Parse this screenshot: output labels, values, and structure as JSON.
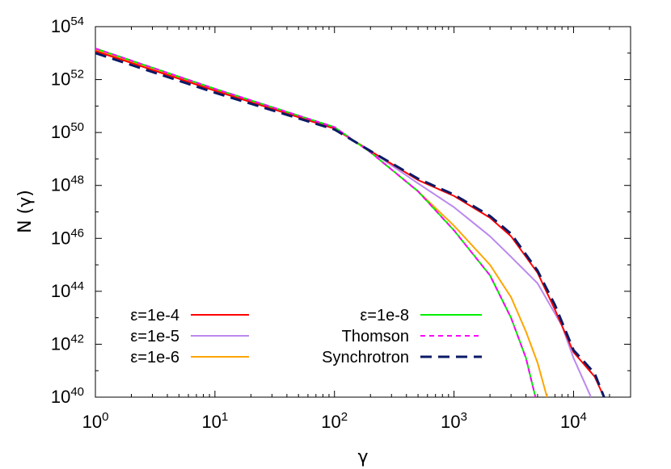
{
  "chart_data": {
    "type": "line",
    "title": "",
    "xlabel": "γ",
    "ylabel": "N (γ)",
    "x_scale": "log",
    "y_scale": "log",
    "xlim": [
      1,
      30000
    ],
    "ylim": [
      1e+40,
      1e+54
    ],
    "x_ticks": [
      {
        "base": "10",
        "exp": "0"
      },
      {
        "base": "10",
        "exp": "1"
      },
      {
        "base": "10",
        "exp": "2"
      },
      {
        "base": "10",
        "exp": "3"
      },
      {
        "base": "10",
        "exp": "4"
      }
    ],
    "y_ticks": [
      {
        "base": "10",
        "exp": "40"
      },
      {
        "base": "10",
        "exp": "42"
      },
      {
        "base": "10",
        "exp": "44"
      },
      {
        "base": "10",
        "exp": "46"
      },
      {
        "base": "10",
        "exp": "48"
      },
      {
        "base": "10",
        "exp": "50"
      },
      {
        "base": "10",
        "exp": "52"
      },
      {
        "base": "10",
        "exp": "54"
      }
    ],
    "grid": false,
    "legend_position": "bottom-left",
    "series": [
      {
        "name": "ε=1e-4",
        "color": "#ff0000",
        "dash": "solid",
        "points": [
          [
            1,
            1.2e+53
          ],
          [
            10,
            3.8e+51
          ],
          [
            100,
            1.4e+50
          ],
          [
            200,
            2e+49
          ],
          [
            500,
            1.6e+48
          ],
          [
            1000,
            4e+47
          ],
          [
            2000,
            6e+46
          ],
          [
            3000,
            1.2e+46
          ],
          [
            5000,
            5e+44
          ],
          [
            7000,
            2e+43
          ],
          [
            10000,
            5e+41
          ],
          [
            15000,
            6e+40
          ],
          [
            18000,
            1e+40
          ]
        ]
      },
      {
        "name": "ε=1e-5",
        "color": "#bb88ee",
        "dash": "solid",
        "points": [
          [
            1,
            1.2e+53
          ],
          [
            10,
            3.8e+51
          ],
          [
            100,
            1.4e+50
          ],
          [
            200,
            2e+49
          ],
          [
            500,
            1.2e+48
          ],
          [
            1000,
            1.5e+47
          ],
          [
            2000,
            1.2e+46
          ],
          [
            3000,
            2e+45
          ],
          [
            5000,
            2e+44
          ],
          [
            8000,
            5e+42
          ],
          [
            10000,
            3e+41
          ],
          [
            14000,
            1e+40
          ]
        ]
      },
      {
        "name": "ε=1e-6",
        "color": "#ffa500",
        "dash": "solid",
        "points": [
          [
            1,
            1.3e+53
          ],
          [
            10,
            4e+51
          ],
          [
            100,
            1.5e+50
          ],
          [
            200,
            1.8e+49
          ],
          [
            500,
            6e+47
          ],
          [
            1000,
            3e+46
          ],
          [
            2000,
            1e+45
          ],
          [
            3000,
            6e+43
          ],
          [
            4000,
            3e+42
          ],
          [
            5000,
            2e+41
          ],
          [
            6000,
            1e+40
          ]
        ]
      },
      {
        "name": "ε=1e-8",
        "color": "#00ee00",
        "dash": "solid",
        "points": [
          [
            1,
            1.5e+53
          ],
          [
            10,
            4.5e+51
          ],
          [
            100,
            1.6e+50
          ],
          [
            200,
            1.8e+49
          ],
          [
            500,
            6e+47
          ],
          [
            1000,
            2e+46
          ],
          [
            2000,
            4e+44
          ],
          [
            3000,
            1e+43
          ],
          [
            4000,
            3e+41
          ],
          [
            4800,
            1e+40
          ]
        ]
      },
      {
        "name": "Thomson",
        "color": "#ff00ff",
        "dash": "short",
        "points": [
          [
            1,
            1.5e+53
          ],
          [
            10,
            4.5e+51
          ],
          [
            100,
            1.6e+50
          ],
          [
            200,
            1.8e+49
          ],
          [
            500,
            6e+47
          ],
          [
            1000,
            2e+46
          ],
          [
            2000,
            4e+44
          ],
          [
            3000,
            1e+43
          ],
          [
            4000,
            3e+41
          ],
          [
            4800,
            1e+40
          ]
        ]
      },
      {
        "name": "Synchrotron",
        "color": "#0b1a66",
        "dash": "long",
        "points": [
          [
            1,
            1e+53
          ],
          [
            10,
            3.2e+51
          ],
          [
            100,
            1.3e+50
          ],
          [
            200,
            2e+49
          ],
          [
            500,
            1.8e+48
          ],
          [
            1000,
            4.5e+47
          ],
          [
            2000,
            7e+46
          ],
          [
            3000,
            1.5e+46
          ],
          [
            5000,
            6e+44
          ],
          [
            7000,
            3e+43
          ],
          [
            10000,
            6e+41
          ],
          [
            15000,
            8e+40
          ],
          [
            18000,
            1e+40
          ]
        ]
      }
    ]
  }
}
